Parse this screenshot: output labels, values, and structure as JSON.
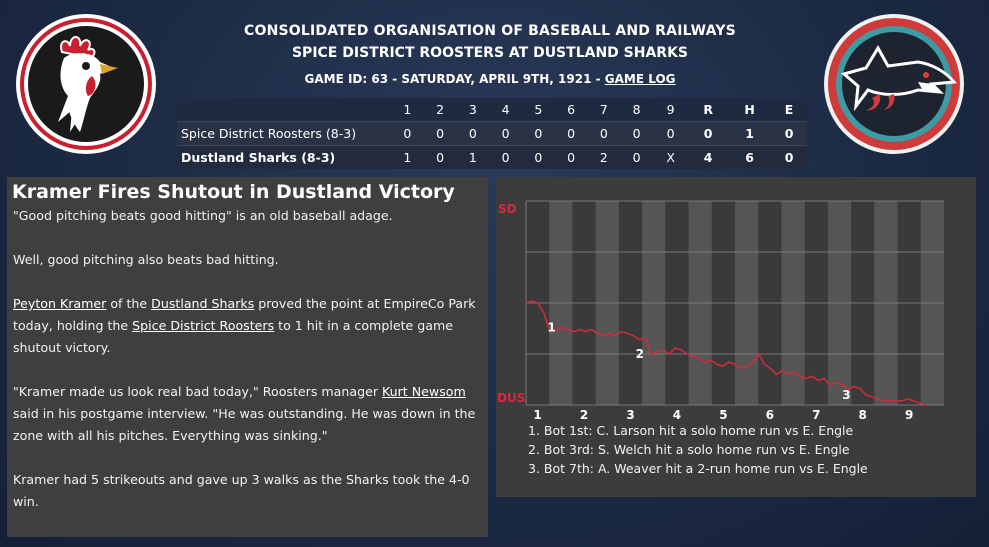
{
  "header": {
    "league": "CONSOLIDATED ORGANISATION OF BASEBALL AND RAILWAYS",
    "matchup": "SPICE DISTRICT ROOSTERS AT DUSTLAND SHARKS",
    "game_info": "GAME ID: 63 - SATURDAY, APRIL 9TH, 1921 - ",
    "game_log_link": "GAME LOG"
  },
  "logos": {
    "away": "rooster-logo",
    "home": "shark-logo"
  },
  "boxscore": {
    "columns": [
      "1",
      "2",
      "3",
      "4",
      "5",
      "6",
      "7",
      "8",
      "9",
      "R",
      "H",
      "E"
    ],
    "rows": [
      {
        "team": "Spice District Roosters (8-3)",
        "cells": [
          "0",
          "0",
          "0",
          "0",
          "0",
          "0",
          "0",
          "0",
          "0",
          "0",
          "1",
          "0"
        ]
      },
      {
        "team": "Dustland Sharks (8-3)",
        "cells": [
          "1",
          "0",
          "1",
          "0",
          "0",
          "0",
          "2",
          "0",
          "X",
          "4",
          "6",
          "0"
        ]
      }
    ]
  },
  "story": {
    "headline": "Kramer Fires Shutout in Dustland Victory",
    "p1": "\"Good pitching beats good hitting\" is an old baseball adage.",
    "p2": "Well, good pitching also beats bad hitting.",
    "p3_link1": "Peyton Kramer",
    "p3_t1": " of the ",
    "p3_link2": "Dustland Sharks",
    "p3_t2": " proved the point at EmpireCo Park today, holding the ",
    "p3_link3": "Spice District Roosters",
    "p3_t3": " to 1 hit in a complete game shutout victory.",
    "p4_t1": "\"Kramer made us look real bad today,\" Roosters manager ",
    "p4_link": "Kurt Newsom",
    "p4_t2": " said in his postgame interview. \"He was outstanding. He was down in the zone with all his pitches. Everything was sinking.\"",
    "p5": "Kramer had 5 strikeouts and gave up 3 walks as the Sharks took the 4-0 win."
  },
  "chart_data": {
    "type": "line",
    "top_label": "SD",
    "bottom_label": "DUS",
    "innings": [
      "1",
      "2",
      "3",
      "4",
      "5",
      "6",
      "7",
      "8",
      "9"
    ],
    "ylim": [
      0,
      1
    ],
    "line_color": "#d42b3c",
    "label_color": "#d42b3c",
    "series": [
      {
        "values": [
          0.5,
          0.51,
          0.5,
          0.45,
          0.36,
          0.37,
          0.38,
          0.37,
          0.36,
          0.37,
          0.36,
          0.37,
          0.35,
          0.34,
          0.35,
          0.34,
          0.36,
          0.35,
          0.34,
          0.32,
          0.33,
          0.25,
          0.26,
          0.27,
          0.25,
          0.28,
          0.27,
          0.25,
          0.24,
          0.23,
          0.21,
          0.22,
          0.2,
          0.19,
          0.21,
          0.2,
          0.18,
          0.19,
          0.21,
          0.25,
          0.2,
          0.18,
          0.15,
          0.17,
          0.15,
          0.16,
          0.14,
          0.13,
          0.14,
          0.12,
          0.13,
          0.1,
          0.11,
          0.1,
          0.08,
          0.09,
          0.08,
          0.05,
          0.04,
          0.03,
          0.02,
          0.02,
          0.02,
          0.02,
          0.03,
          0.02,
          0.01,
          0.0
        ],
        "x_end_inning": 9.6
      }
    ],
    "markers": [
      {
        "label": "1",
        "inning": 1.55,
        "value": 0.36
      },
      {
        "label": "2",
        "inning": 3.45,
        "value": 0.23
      },
      {
        "label": "3",
        "inning": 7.9,
        "value": 0.03
      }
    ],
    "events": [
      "1. Bot 1st: C. Larson hit a solo home run vs E. Engle",
      "2. Bot 3rd: S. Welch hit a solo home run vs E. Engle",
      "3. Bot 7th: A. Weaver hit a 2-run home run vs E. Engle"
    ]
  }
}
